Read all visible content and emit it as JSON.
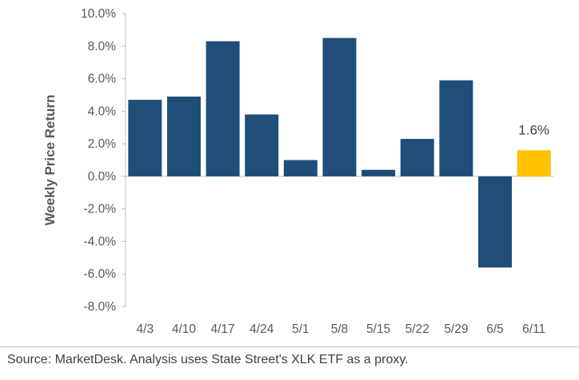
{
  "chart_data": {
    "type": "bar",
    "categories": [
      "4/3",
      "4/10",
      "4/17",
      "4/24",
      "5/1",
      "5/8",
      "5/15",
      "5/22",
      "5/29",
      "6/5",
      "6/11"
    ],
    "values": [
      4.7,
      4.9,
      8.3,
      3.8,
      1.0,
      8.5,
      0.4,
      2.3,
      5.9,
      -5.6,
      1.6
    ],
    "ylabel": "Weekly Price Return",
    "ylim": [
      -8.0,
      10.0
    ],
    "yticks": [
      "10.0%",
      "8.0%",
      "6.0%",
      "4.0%",
      "2.0%",
      "0.0%",
      "-2.0%",
      "-4.0%",
      "-6.0%",
      "-8.0%"
    ],
    "ytick_values": [
      10,
      8,
      6,
      4,
      2,
      0,
      -2,
      -4,
      -6,
      -8
    ],
    "data_labels": [
      {
        "category": "6/11",
        "text": "1.6%"
      }
    ],
    "highlight_index": 10,
    "grid": false,
    "colors": {
      "bar": "#1F4E79",
      "highlight": "#FFC000",
      "axis": "#bfbfbf"
    }
  },
  "source_note": "Source: MarketDesk. Analysis uses State Street's XLK ETF as a proxy."
}
